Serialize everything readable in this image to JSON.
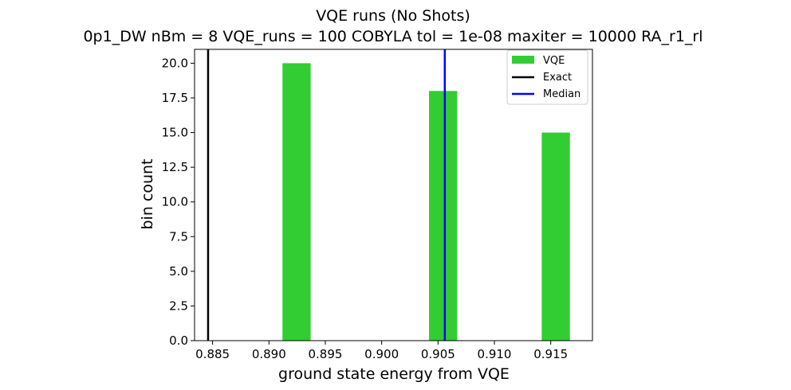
{
  "chart_data": {
    "type": "bar",
    "title": "VQE runs (No Shots)",
    "subtitle": "0p1_DW    nBm = 8    VQE_runs = 100    COBYLA    tol = 1e-08    maxiter = 10000    RA_r1_rl",
    "xlabel": "ground state energy from VQE",
    "ylabel": "bin count",
    "xlim": [
      0.8834,
      0.9187
    ],
    "ylim": [
      0,
      21
    ],
    "x_ticks": [
      "0.885",
      "0.890",
      "0.895",
      "0.900",
      "0.905",
      "0.910",
      "0.915"
    ],
    "x_tick_values": [
      0.885,
      0.89,
      0.895,
      0.9,
      0.905,
      0.91,
      0.915
    ],
    "y_ticks": [
      "0.0",
      "2.5",
      "5.0",
      "7.5",
      "10.0",
      "12.5",
      "15.0",
      "17.5",
      "20.0"
    ],
    "y_tick_values": [
      0,
      2.5,
      5,
      7.5,
      10,
      12.5,
      15,
      17.5,
      20
    ],
    "bar_color": "#32cd32",
    "bins": [
      {
        "x_start": 0.8912,
        "x_end": 0.8937,
        "count": 20
      },
      {
        "x_start": 0.9042,
        "x_end": 0.9067,
        "count": 18
      },
      {
        "x_start": 0.9142,
        "x_end": 0.9167,
        "count": 15
      }
    ],
    "lines": [
      {
        "name": "Exact",
        "x": 0.8846,
        "color": "#000000"
      },
      {
        "name": "Median",
        "x": 0.9056,
        "color": "#0000ff"
      }
    ],
    "legend": {
      "position": "top-right",
      "entries": [
        {
          "label": "VQE",
          "kind": "patch",
          "color": "#32cd32"
        },
        {
          "label": "Exact",
          "kind": "line",
          "color": "#000000"
        },
        {
          "label": "Median",
          "kind": "line",
          "color": "#0000ff"
        }
      ]
    },
    "grid": false
  }
}
